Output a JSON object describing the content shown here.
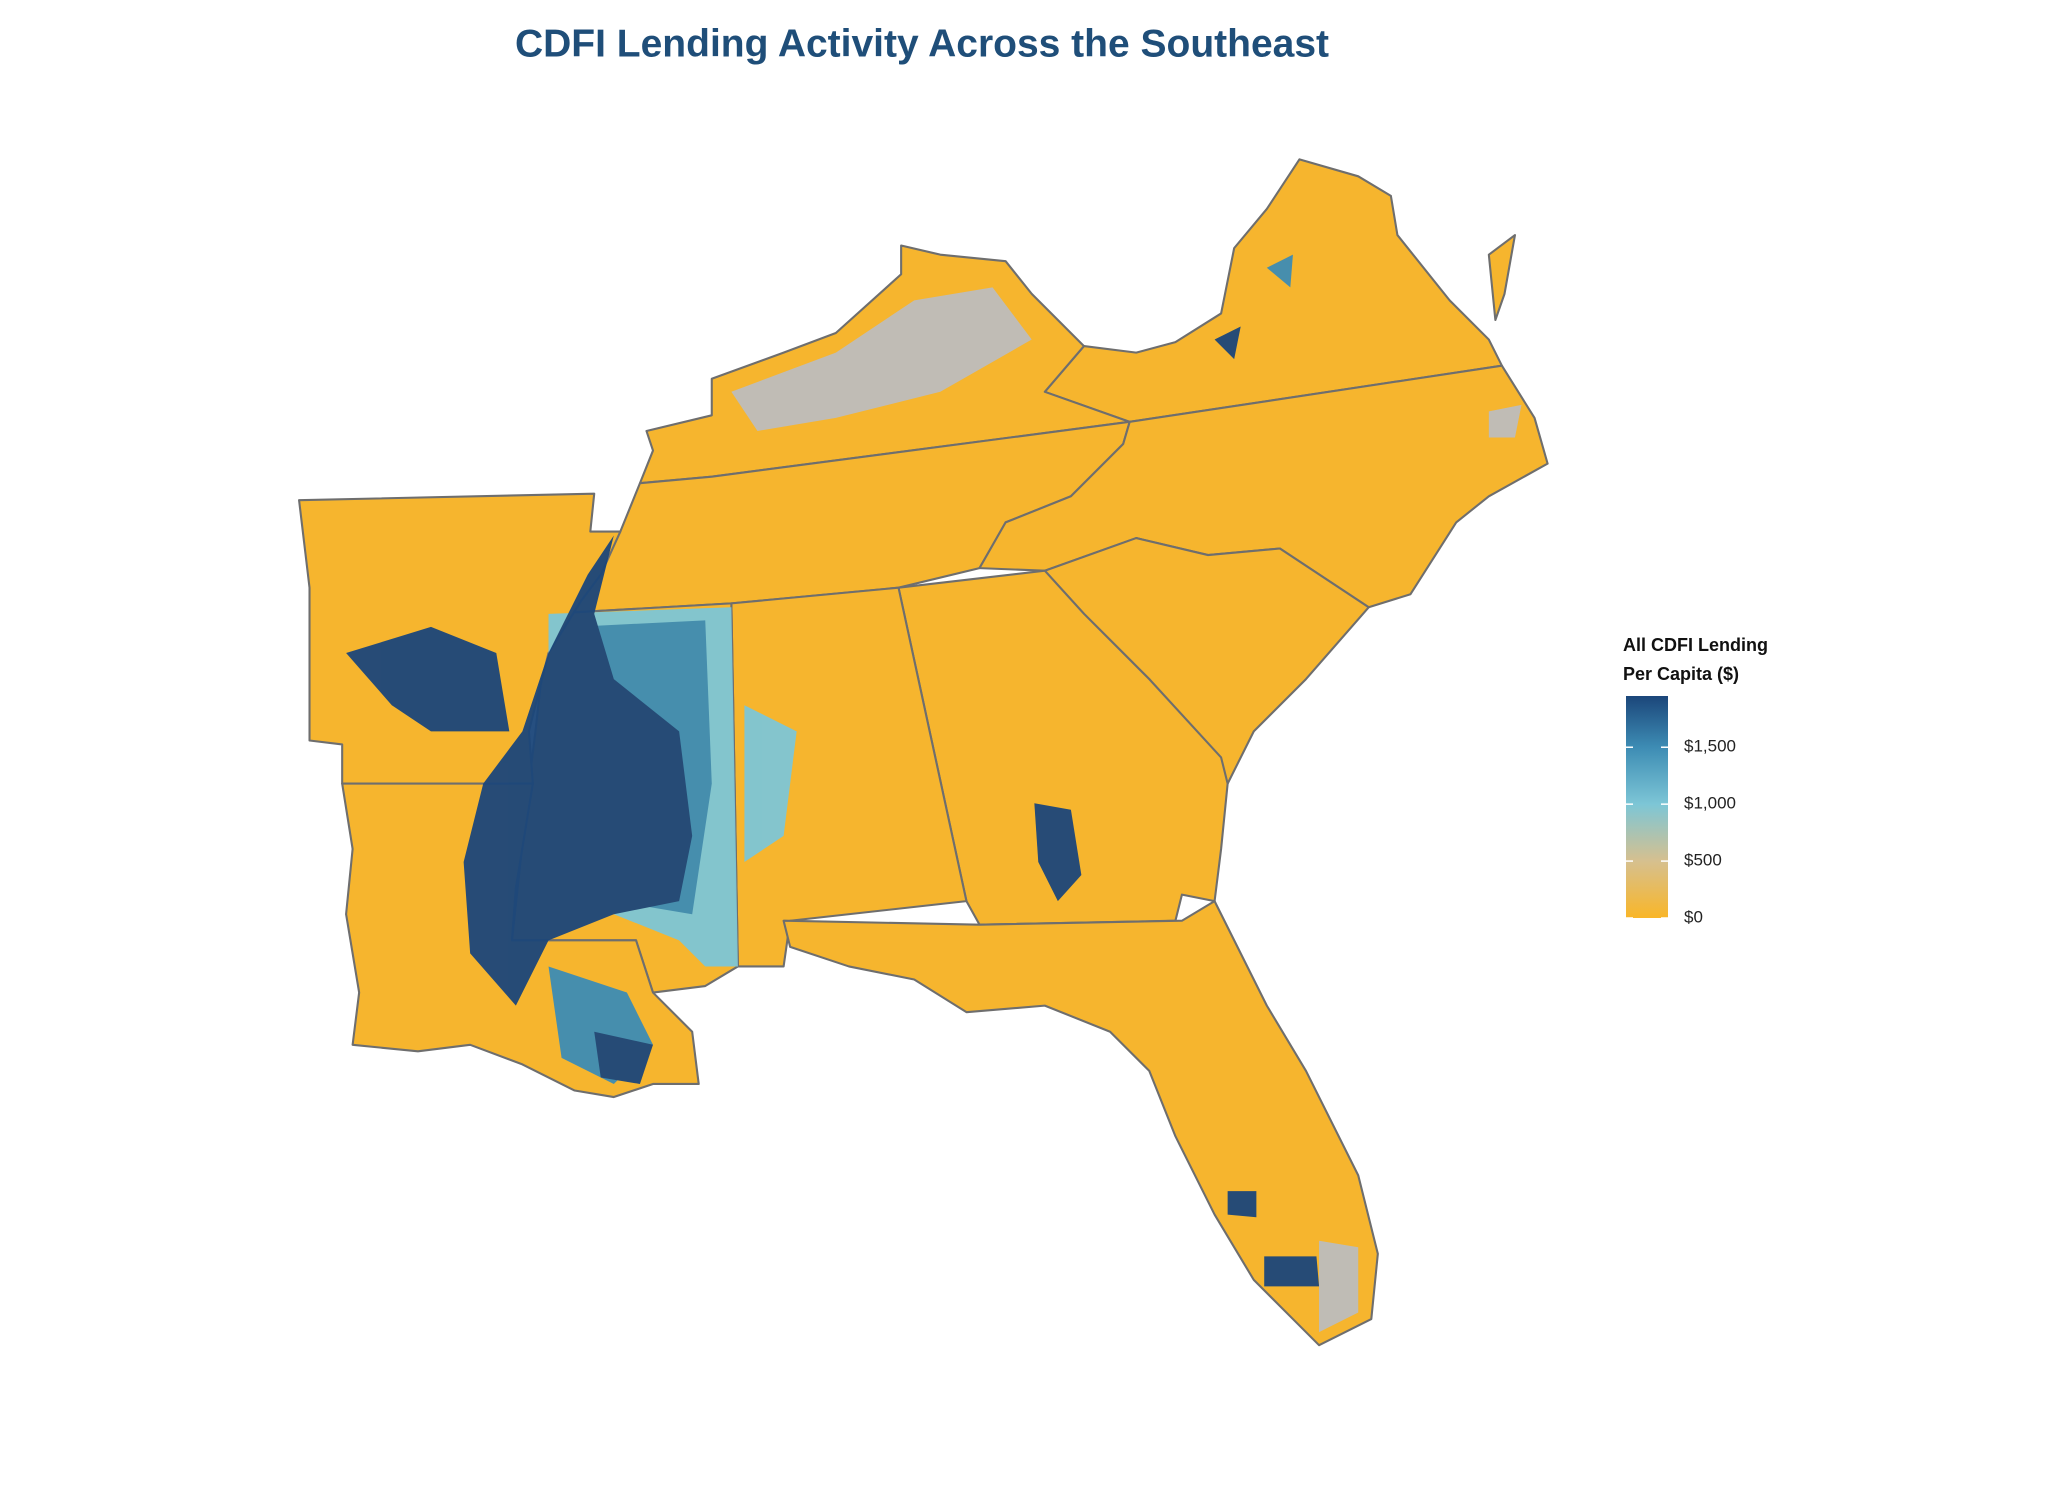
{
  "title": "CDFI Lending Activity Across the Southeast",
  "legend": {
    "title": [
      "All CDFI Lending",
      "Per Capita ($)"
    ],
    "range": [
      0,
      1950
    ],
    "ticks": [
      {
        "value": 0,
        "label": "$0"
      },
      {
        "value": 500,
        "label": "$500"
      },
      {
        "value": 1000,
        "label": "$1,000"
      },
      {
        "value": 1500,
        "label": "$1,500"
      }
    ],
    "colors": [
      {
        "value": 0,
        "color": "#f9b628"
      },
      {
        "value": 500,
        "color": "#d6c08f"
      },
      {
        "value": 1000,
        "color": "#7dc6d6"
      },
      {
        "value": 1500,
        "color": "#3d8cb4"
      },
      {
        "value": 1950,
        "color": "#1b467a"
      }
    ]
  }
}
